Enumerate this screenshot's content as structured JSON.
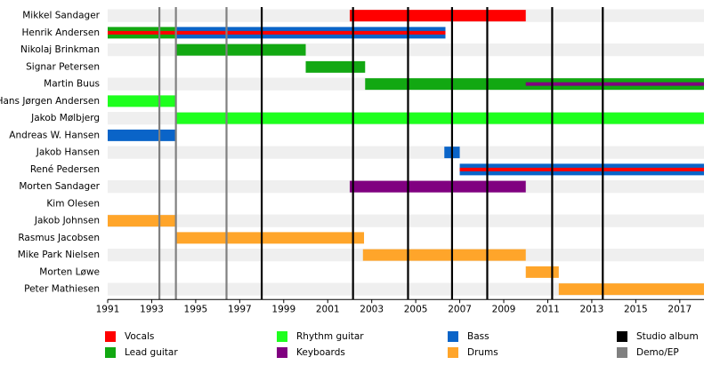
{
  "chart_data": {
    "type": "timeline",
    "categories": [
      "Mikkel Sandager",
      "Henrik Andersen",
      "Nikolaj Brinkman",
      "Signar Petersen",
      "Martin Buus",
      "Hans Jørgen Andersen",
      "Jakob Mølbjerg",
      "Andreas W. Hansen",
      "Jakob Hansen",
      "René Pedersen",
      "Morten Sandager",
      "Kim Olesen",
      "Jakob Johnsen",
      "Rasmus Jacobsen",
      "Mike Park Nielsen",
      "Morten Løwe",
      "Peter Mathiesen"
    ],
    "series": [
      {
        "name": "Vocals",
        "color": "#ff0000",
        "values": [
          [
            2002.0,
            2010.0
          ],
          [
            1991.0,
            2006.35
          ],
          null,
          null,
          null,
          null,
          null,
          null,
          null,
          [
            2007.0,
            2018.1
          ],
          null,
          null,
          null,
          null,
          null,
          null,
          null
        ]
      },
      {
        "name": "Lead guitar",
        "color": "#12a812",
        "values": [
          null,
          [
            1991.0,
            1994.1
          ],
          [
            1994.1,
            2000.0
          ],
          [
            2000.0,
            2002.7
          ],
          [
            2002.7,
            2018.1
          ],
          null,
          null,
          null,
          null,
          null,
          null,
          null,
          null,
          null,
          null,
          null,
          null
        ]
      },
      {
        "name": "Rhythm guitar",
        "color": "#1eff1e",
        "values": [
          null,
          null,
          null,
          null,
          null,
          [
            1991.0,
            1994.1
          ],
          [
            1994.1,
            2018.1
          ],
          null,
          null,
          null,
          null,
          null,
          null,
          null,
          null,
          null,
          null
        ]
      },
      {
        "name": "Keyboards",
        "color": "#800080",
        "values": [
          null,
          null,
          null,
          null,
          [
            2010.0,
            2018.1
          ],
          null,
          null,
          null,
          null,
          null,
          [
            2002.0,
            2010.0
          ],
          null,
          null,
          null,
          null,
          null,
          null
        ]
      },
      {
        "name": "Bass",
        "color": "#0a64c8",
        "values": [
          null,
          [
            1994.1,
            2006.35
          ],
          null,
          null,
          null,
          null,
          null,
          [
            1991.0,
            1994.1
          ],
          [
            2006.3,
            2007.0
          ],
          [
            2007.0,
            2018.1
          ],
          null,
          null,
          null,
          null,
          null,
          null,
          null
        ]
      },
      {
        "name": "Drums",
        "color": "#ffa52a",
        "values": [
          null,
          null,
          null,
          null,
          null,
          null,
          null,
          null,
          null,
          null,
          null,
          null,
          [
            1991.0,
            1994.1
          ],
          [
            1994.1,
            2002.65
          ],
          [
            2002.6,
            2010.0
          ],
          [
            2010.0,
            2011.5
          ],
          [
            2011.5,
            2018.1
          ]
        ]
      }
    ],
    "events": [
      {
        "name": "Studio album",
        "color": "#000000",
        "x": [
          1998.0,
          2002.15,
          2004.65,
          2006.65,
          2008.25,
          2011.2,
          2013.5
        ]
      },
      {
        "name": "Demo/EP",
        "color": "#808080",
        "x": [
          1993.35,
          1994.1,
          1996.4
        ]
      }
    ],
    "xlim": [
      1991,
      2018.1
    ],
    "xticks": [
      1991,
      1993,
      1995,
      1997,
      1999,
      2001,
      2003,
      2005,
      2007,
      2009,
      2011,
      2013,
      2015,
      2017
    ]
  }
}
